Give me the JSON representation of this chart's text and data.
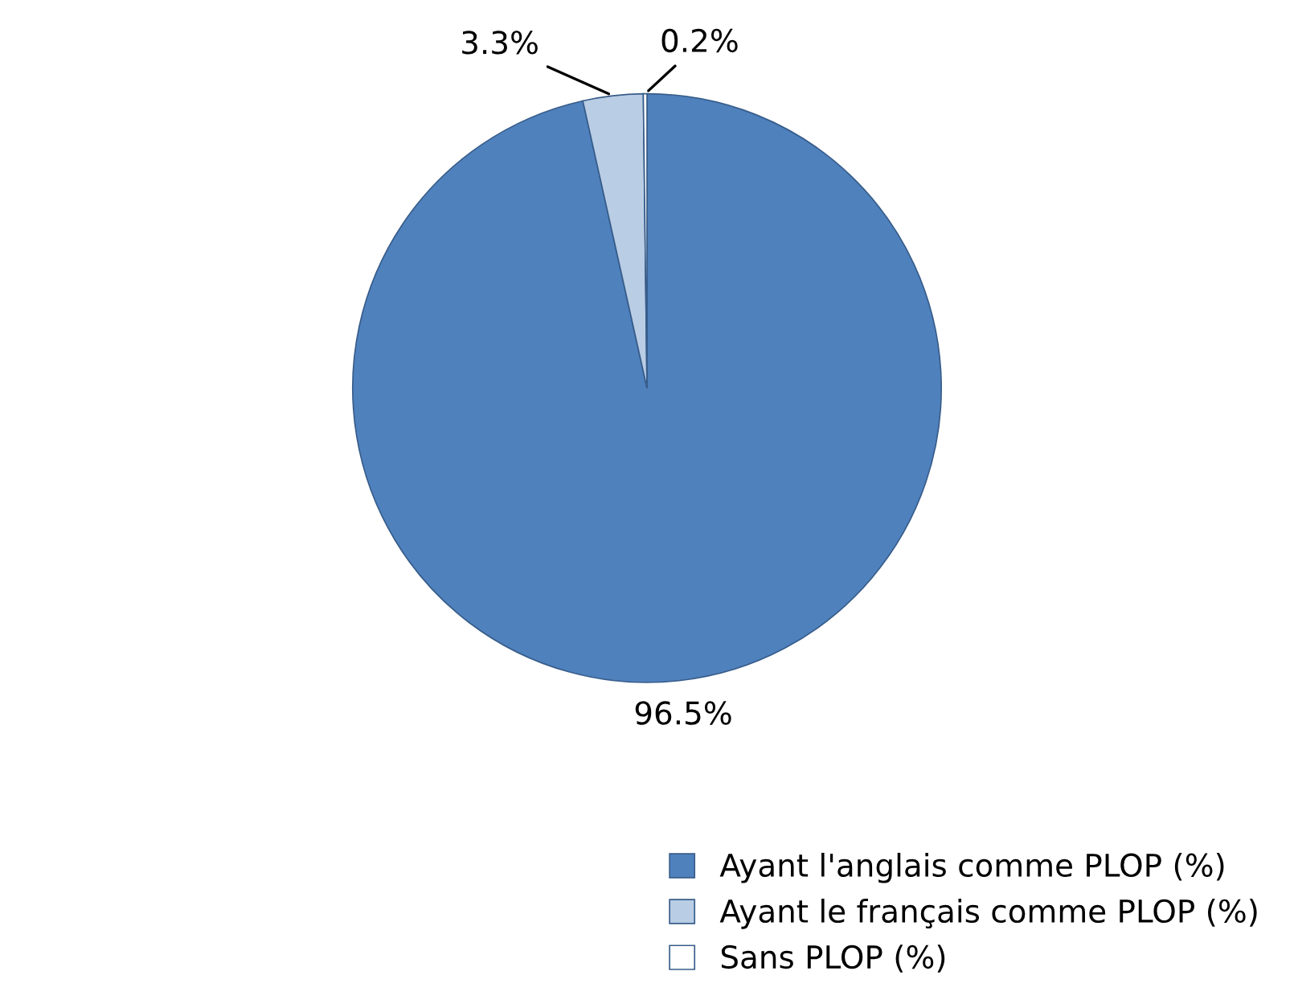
{
  "chart_data": {
    "type": "pie",
    "categories": [
      "Ayant l'anglais comme PLOP (%)",
      "Ayant le français comme PLOP (%)",
      "Sans PLOP (%)"
    ],
    "values": [
      96.5,
      3.3,
      0.2
    ],
    "colors": [
      "#4f81bd",
      "#b9cde5",
      "#ffffff"
    ],
    "value_labels": [
      "96.5%",
      "3.3%",
      "0.2%"
    ],
    "legend": "bottom right"
  }
}
